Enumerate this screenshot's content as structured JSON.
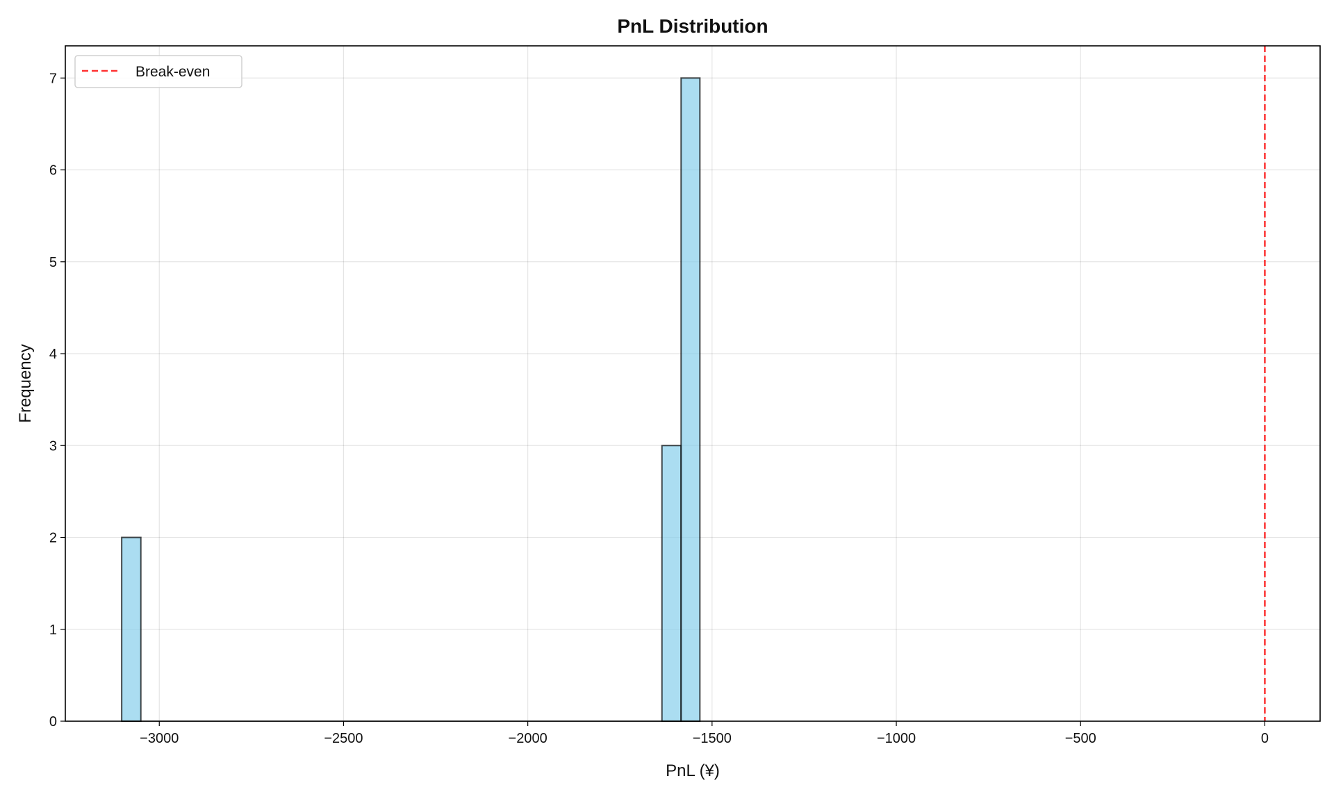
{
  "chart_data": {
    "type": "bar",
    "subtype": "histogram",
    "title": "PnL Distribution",
    "xlabel": "PnL (¥)",
    "ylabel": "Frequency",
    "xlim": [
      -3255,
      150
    ],
    "ylim": [
      0,
      7.35
    ],
    "xticks": [
      -3000,
      -2500,
      -2000,
      -1500,
      -1000,
      -500,
      0
    ],
    "xtick_labels": [
      "−3000",
      "−2500",
      "−2000",
      "−1500",
      "−1000",
      "−500",
      "0"
    ],
    "yticks": [
      0,
      1,
      2,
      3,
      4,
      5,
      6,
      7
    ],
    "ytick_labels": [
      "0",
      "1",
      "2",
      "3",
      "4",
      "5",
      "6",
      "7"
    ],
    "grid": true,
    "bins": [
      {
        "from": -3102,
        "to": -3050,
        "count": 2
      },
      {
        "from": -1636,
        "to": -1584,
        "count": 3
      },
      {
        "from": -1584,
        "to": -1533,
        "count": 7
      }
    ],
    "bin_range": [
      -3102,
      -1533
    ],
    "bar_color": "#87ceeb",
    "bar_edge_color": "#000000",
    "reference_line": {
      "x": 0,
      "label": "Break-even",
      "color": "#ff0000",
      "style": "dashed"
    },
    "legend": {
      "position": "top-left",
      "entries": [
        "Break-even"
      ]
    }
  }
}
